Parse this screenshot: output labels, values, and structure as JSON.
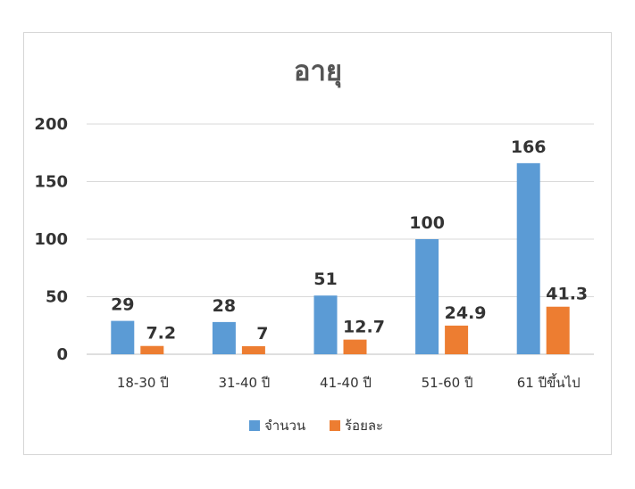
{
  "chart_data": {
    "type": "bar",
    "title": "อายุ",
    "xlabel": "",
    "ylabel": "",
    "categories": [
      "18-30 ปี",
      "31-40 ปี",
      "41-40 ปี",
      "51-60 ปี",
      "61 ปีขึ้นไป"
    ],
    "series": [
      {
        "name": "จำนวน",
        "color": "#5b9bd5",
        "values": [
          29,
          28,
          51,
          100,
          166
        ],
        "labels": [
          "29",
          "28",
          "51",
          "100",
          "166"
        ]
      },
      {
        "name": "ร้อยละ",
        "color": "#ed7d31",
        "values": [
          7.2,
          7,
          12.7,
          24.9,
          41.3
        ],
        "labels": [
          "7.2",
          "7",
          "12.7",
          "24.9",
          "41.3"
        ]
      }
    ],
    "ylim": [
      0,
      200
    ],
    "yticks": [
      "0",
      "50",
      "100",
      "150",
      "200"
    ],
    "grid": true,
    "legend_position": "bottom"
  }
}
